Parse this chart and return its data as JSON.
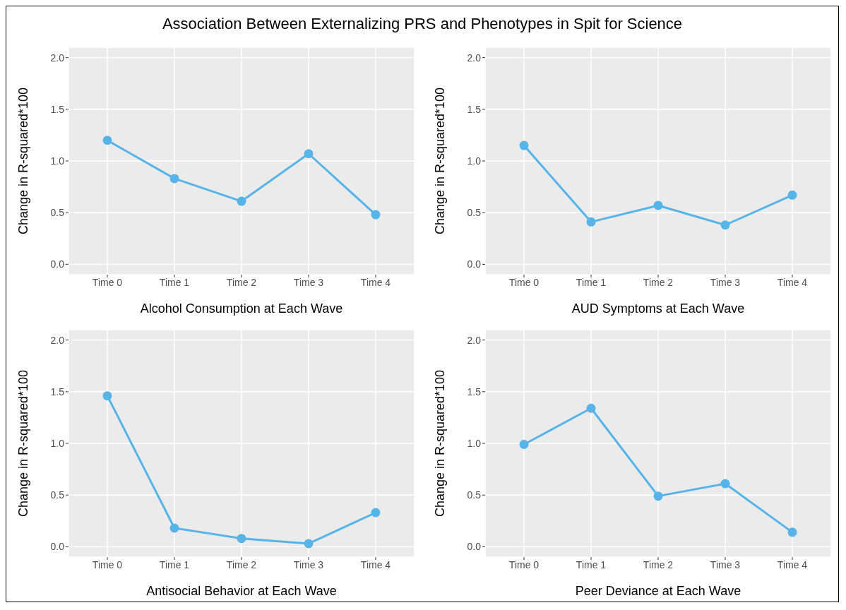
{
  "chart_data": [
    {
      "type": "line",
      "title": "Association Between Externalizing PRS and Phenotypes in Spit for Science",
      "xlabel": "Alcohol Consumption at Each Wave",
      "ylabel": "Change in R-squared*100",
      "categories": [
        "Time 0",
        "Time 1",
        "Time 2",
        "Time 3",
        "Time 4"
      ],
      "series": [
        {
          "color": "#56b4e9",
          "values": [
            1.2,
            0.83,
            0.61,
            1.07,
            0.48
          ]
        }
      ],
      "ylim": [
        -0.1,
        2.1
      ],
      "yticks": [
        {
          "value": 0,
          "label": "0.0"
        },
        {
          "value": 0.5,
          "label": "0.5"
        },
        {
          "value": 1,
          "label": "1.0"
        },
        {
          "value": 1.5,
          "label": "1.5"
        },
        {
          "value": 2,
          "label": "2.0"
        }
      ],
      "grid": true,
      "marker": "circle",
      "line_style": "solid"
    },
    {
      "type": "line",
      "xlabel": "AUD Symptoms at Each Wave",
      "ylabel": "Change in R-squared*100",
      "categories": [
        "Time 0",
        "Time 1",
        "Time 2",
        "Time 3",
        "Time 4"
      ],
      "series": [
        {
          "color": "#56b4e9",
          "values": [
            1.15,
            0.41,
            0.57,
            0.38,
            0.67
          ]
        }
      ],
      "ylim": [
        -0.1,
        2.1
      ],
      "yticks": [
        {
          "value": 0,
          "label": "0.0"
        },
        {
          "value": 0.5,
          "label": "0.5"
        },
        {
          "value": 1,
          "label": "1.0"
        },
        {
          "value": 1.5,
          "label": "1.5"
        },
        {
          "value": 2,
          "label": "2.0"
        }
      ],
      "grid": true,
      "marker": "circle",
      "line_style": "solid"
    },
    {
      "type": "line",
      "xlabel": "Antisocial Behavior at Each Wave",
      "ylabel": "Change in R-squared*100",
      "categories": [
        "Time 0",
        "Time 1",
        "Time 2",
        "Time 3",
        "Time 4"
      ],
      "series": [
        {
          "color": "#56b4e9",
          "values": [
            1.46,
            0.18,
            0.08,
            0.03,
            0.33
          ]
        }
      ],
      "ylim": [
        -0.1,
        2.1
      ],
      "yticks": [
        {
          "value": 0,
          "label": "0.0"
        },
        {
          "value": 0.5,
          "label": "0.5"
        },
        {
          "value": 1,
          "label": "1.0"
        },
        {
          "value": 1.5,
          "label": "1.5"
        },
        {
          "value": 2,
          "label": "2.0"
        }
      ],
      "grid": true,
      "marker": "circle",
      "line_style": "solid"
    },
    {
      "type": "line",
      "xlabel": "Peer Deviance at Each Wave",
      "ylabel": "Change in R-squared*100",
      "categories": [
        "Time 0",
        "Time 1",
        "Time 2",
        "Time 3",
        "Time 4"
      ],
      "series": [
        {
          "color": "#56b4e9",
          "values": [
            0.99,
            1.34,
            0.49,
            0.61,
            0.14
          ]
        }
      ],
      "ylim": [
        -0.1,
        2.1
      ],
      "yticks": [
        {
          "value": 0,
          "label": "0.0"
        },
        {
          "value": 0.5,
          "label": "0.5"
        },
        {
          "value": 1,
          "label": "1.0"
        },
        {
          "value": 1.5,
          "label": "1.5"
        },
        {
          "value": 2,
          "label": "2.0"
        }
      ],
      "grid": true,
      "marker": "circle",
      "line_style": "solid"
    }
  ]
}
